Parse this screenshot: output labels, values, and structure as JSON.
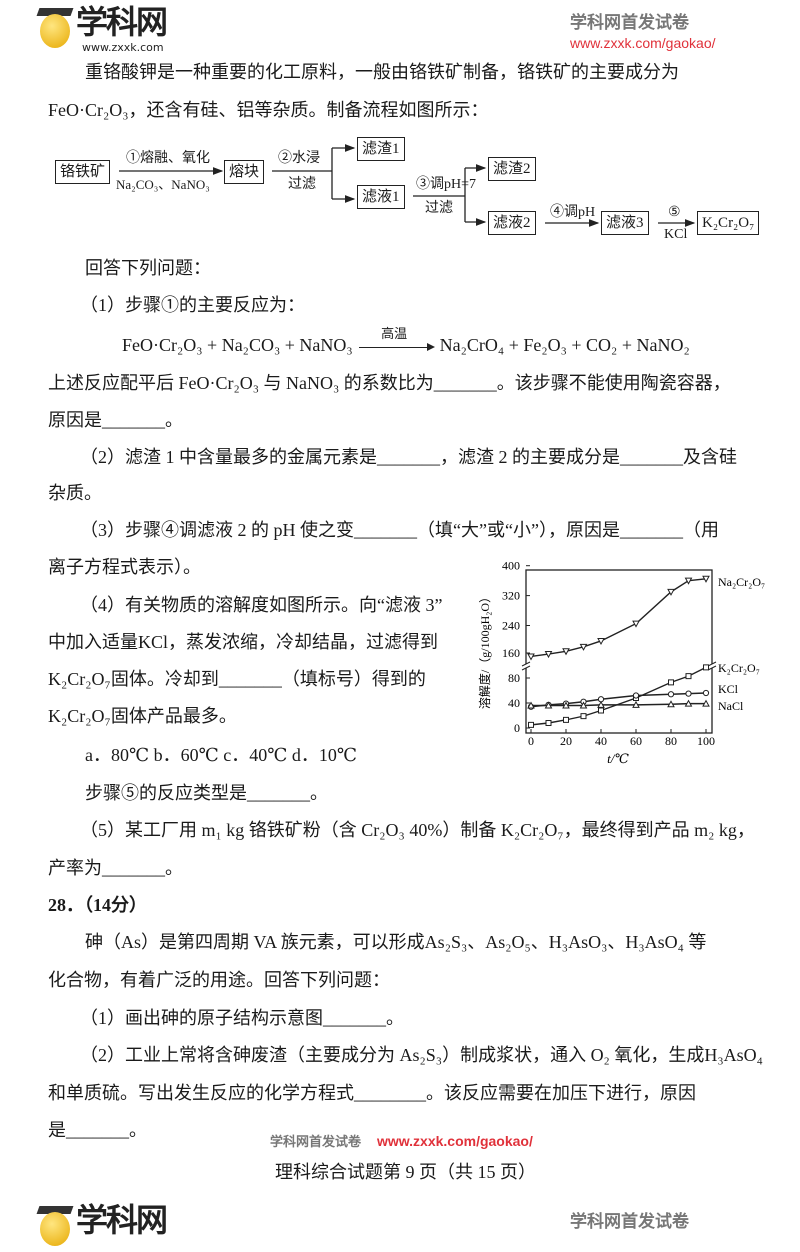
{
  "header": {
    "logo_name": "学科网",
    "logo_url": "www.zxxk.com",
    "tagline": "学科网首发试卷",
    "tagline_url": "www.zxxk.com/gaokao/"
  },
  "intro": [
    "重铬酸钾是一种重要的化工原料，一般由铬铁矿制备，铬铁矿的主要成分为",
    "FeO·Cr₂O₃，还含有硅、铝等杂质。制备流程如图所示："
  ],
  "flowchart": {
    "nodes": [
      "铬铁矿",
      "熔块",
      "滤渣1",
      "滤液1",
      "滤渣2",
      "滤液2",
      "滤液3",
      "K₂Cr₂O₇"
    ],
    "step1_top": "①熔融、氧化",
    "step1_bottom": "Na₂CO₃、NaNO₃",
    "step2_top": "②水浸",
    "step2_bottom": "过滤",
    "step3_top": "③调pH=7",
    "step3_bottom": "过滤",
    "step4_top": "④调pH",
    "step5_top": "⑤",
    "step5_bottom": "KCl"
  },
  "q27": {
    "prompt": "回答下列问题：",
    "p1": "（1）步骤①的主要反应为：",
    "equation_left": "FeO·Cr₂O₃ + Na₂CO₃ + NaNO₃",
    "equation_condition": "高温",
    "equation_right": "Na₂CrO₄ + Fe₂O₃ + CO₂ + NaNO₂",
    "p1b": "上述反应配平后 FeO·Cr₂O₃ 与 NaNO₃ 的系数比为_______。该步骤不能使用陶瓷容器，",
    "p1c": "原因是_______。",
    "p2": "（2）滤渣 1 中含量最多的金属元素是_______，滤渣 2 的主要成分是_______及含硅",
    "p2b": "杂质。",
    "p3": "（3）步骤④调滤液 2 的 pH 使之变_______（填“大”或“小”），原因是_______（用",
    "p3b": "离子方程式表示）。",
    "p4": "（4）有关物质的溶解度如图所示。向“滤液 3”",
    "p4b": "中加入适量KCl，蒸发浓缩，冷却结晶，过滤得到",
    "p4c": "K₂Cr₂O₇固体。冷却到_______（填标号）得到的",
    "p4d": "K₂Cr₂O₇固体产品最多。",
    "options": "a．80℃   b．60℃   c．40℃   d．10℃",
    "p4e": "步骤⑤的反应类型是_______。",
    "p5": "（5）某工厂用 m₁ kg 铬铁矿粉（含 Cr₂O₃ 40%）制备 K₂Cr₂O₇，最终得到产品 m₂ kg，",
    "p5b": "产率为_______。"
  },
  "q28": {
    "title": "28．（14分）",
    "intro": "砷（As）是第四周期 VA 族元素，可以形成As₂S₃、As₂O₅、H₃AsO₃、H₃AsO₄ 等",
    "intro_b": "化合物，有着广泛的用途。回答下列问题：",
    "p1": "（1）画出砷的原子结构示意图_______。",
    "p2": "（2）工业上常将含砷废渣（主要成分为 As₂S₃）制成浆状，通入 O₂ 氧化，生成H₃AsO₄",
    "p2b": "和单质硫。写出发生反应的化学方程式________。该反应需要在加压下进行，原因",
    "p2c": "是_______。"
  },
  "footer": {
    "tagline": "学科网首发试卷",
    "url": "www.zxxk.com/gaokao/",
    "page": "理科综合试题第 9 页（共 15 页）",
    "logo_name": "学科网",
    "tagline2": "学科网首发试卷"
  },
  "colors": {
    "brand_red": "#e0313a",
    "brand_gray": "#777777"
  },
  "chart_data": {
    "type": "line",
    "xlabel": "t/℃",
    "ylabel": "溶解度/（g/100gH₂O）",
    "x_ticks": [
      0,
      20,
      40,
      60,
      80,
      100
    ],
    "y_ticks": [
      0,
      40,
      80,
      160,
      240,
      320,
      400
    ],
    "y_axis_break": [
      100,
      140
    ],
    "xlim": [
      0,
      100
    ],
    "ylim": [
      0,
      400
    ],
    "grid": false,
    "series": [
      {
        "name": "Na₂Cr₂O₇",
        "marker": "triangle-down",
        "x": [
          0,
          10,
          20,
          30,
          40,
          60,
          80,
          90,
          100
        ],
        "y": [
          150,
          157,
          165,
          178,
          195,
          245,
          330,
          360,
          365
        ]
      },
      {
        "name": "K₂Cr₂O₇",
        "marker": "square",
        "x": [
          0,
          10,
          20,
          30,
          40,
          60,
          80,
          90,
          100
        ],
        "y": [
          5,
          8,
          13,
          19,
          28,
          48,
          73,
          83,
          97
        ]
      },
      {
        "name": "KCl",
        "marker": "circle",
        "x": [
          0,
          10,
          20,
          30,
          40,
          60,
          80,
          90,
          100
        ],
        "y": [
          34,
          37,
          39,
          42,
          46,
          52,
          54,
          55,
          56
        ]
      },
      {
        "name": "NaCl",
        "marker": "triangle-up",
        "x": [
          0,
          10,
          20,
          30,
          40,
          60,
          80,
          90,
          100
        ],
        "y": [
          36,
          36,
          36,
          36,
          37,
          37,
          38,
          39,
          39
        ]
      }
    ]
  }
}
